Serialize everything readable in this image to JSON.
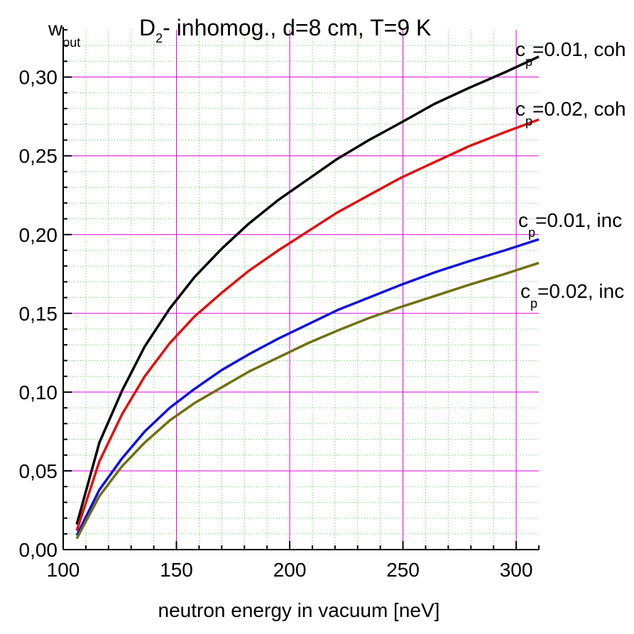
{
  "chart_data": {
    "type": "line",
    "title_main": "D",
    "title_sub": "2",
    "title_rest": "- inhomog., d=8 cm, T=9 K",
    "ylabel_main": "w",
    "ylabel_sub": "out",
    "xlabel": "neutron energy in vacuum [neV]",
    "xlim": [
      100,
      310
    ],
    "ylim": [
      0.0,
      0.33
    ],
    "xticks": [
      "100",
      "150",
      "200",
      "250",
      "300"
    ],
    "xtick_values": [
      100,
      150,
      200,
      250,
      300
    ],
    "yticks": [
      "0,00",
      "0,05",
      "0,10",
      "0,15",
      "0,20",
      "0,25",
      "0,30"
    ],
    "ytick_values": [
      0.0,
      0.05,
      0.1,
      0.15,
      0.2,
      0.25,
      0.3
    ],
    "grid": true,
    "grid_color": "#e000e0",
    "minor_grid_color": "#50c850",
    "x": [
      106,
      116,
      126,
      136,
      147,
      158,
      170,
      182,
      195,
      208,
      221,
      235,
      249,
      264,
      279,
      295,
      310
    ],
    "series": [
      {
        "label_main": "c",
        "label_sub": "p",
        "label_rest": "=0.01, coh",
        "color": "#000000",
        "values": [
          0.016,
          0.068,
          0.101,
          0.129,
          0.153,
          0.173,
          0.191,
          0.207,
          0.222,
          0.235,
          0.248,
          0.26,
          0.271,
          0.283,
          0.293,
          0.303,
          0.313
        ]
      },
      {
        "label_main": "c",
        "label_sub": "p",
        "label_rest": "=0.02, coh",
        "color": "#e01010",
        "values": [
          0.012,
          0.056,
          0.086,
          0.11,
          0.131,
          0.148,
          0.163,
          0.177,
          0.19,
          0.202,
          0.214,
          0.225,
          0.236,
          0.246,
          0.256,
          0.265,
          0.273
        ]
      },
      {
        "label_main": "c",
        "label_sub": "p",
        "label_rest": "=0.01, inc",
        "color": "#1010e0",
        "values": [
          0.009,
          0.038,
          0.058,
          0.075,
          0.09,
          0.102,
          0.114,
          0.124,
          0.134,
          0.143,
          0.152,
          0.16,
          0.168,
          0.176,
          0.183,
          0.19,
          0.197
        ]
      },
      {
        "label_main": "c",
        "label_sub": "p",
        "label_rest": "=0.02, inc",
        "color": "#707010",
        "values": [
          0.007,
          0.034,
          0.053,
          0.068,
          0.082,
          0.093,
          0.103,
          0.113,
          0.122,
          0.131,
          0.139,
          0.147,
          0.154,
          0.161,
          0.168,
          0.175,
          0.182
        ]
      }
    ]
  }
}
